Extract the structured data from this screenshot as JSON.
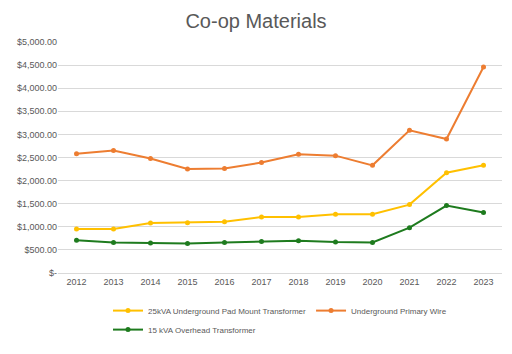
{
  "chart_data": {
    "type": "line",
    "title": "Co-op Materials",
    "categories": [
      "2012",
      "2013",
      "2014",
      "2015",
      "2016",
      "2017",
      "2018",
      "2019",
      "2020",
      "2021",
      "2022",
      "2023"
    ],
    "series": [
      {
        "name": "25kVA Underground Pad Mount Transformer",
        "color": "#FFC000",
        "values": [
          950,
          950,
          1080,
          1090,
          1110,
          1210,
          1210,
          1270,
          1270,
          1480,
          2170,
          2330
        ]
      },
      {
        "name": "Underground Primary Wire",
        "color": "#ED7D31",
        "values": [
          2580,
          2650,
          2480,
          2250,
          2260,
          2390,
          2570,
          2540,
          2330,
          3090,
          2900,
          4460
        ]
      },
      {
        "name": "15 kVA Overhead Transformer",
        "color": "#1E7B1E",
        "values": [
          710,
          660,
          650,
          640,
          660,
          680,
          700,
          670,
          660,
          980,
          1460,
          1310
        ]
      }
    ],
    "ylim": [
      0,
      5000
    ],
    "yticks": [
      {
        "value": 0,
        "label": "$-"
      },
      {
        "value": 500,
        "label": "$500.00"
      },
      {
        "value": 1000,
        "label": "$1,000.00"
      },
      {
        "value": 1500,
        "label": "$1,500.00"
      },
      {
        "value": 2000,
        "label": "$2,000.00"
      },
      {
        "value": 2500,
        "label": "$2,500.00"
      },
      {
        "value": 3000,
        "label": "$3,000.00"
      },
      {
        "value": 3500,
        "label": "$3,500.00"
      },
      {
        "value": 4000,
        "label": "$4,000.00"
      },
      {
        "value": 4500,
        "label": "$4,500.00"
      },
      {
        "value": 5000,
        "label": "$5,000.00"
      }
    ],
    "grid": true,
    "legend": "bottom",
    "marker": "circle"
  }
}
